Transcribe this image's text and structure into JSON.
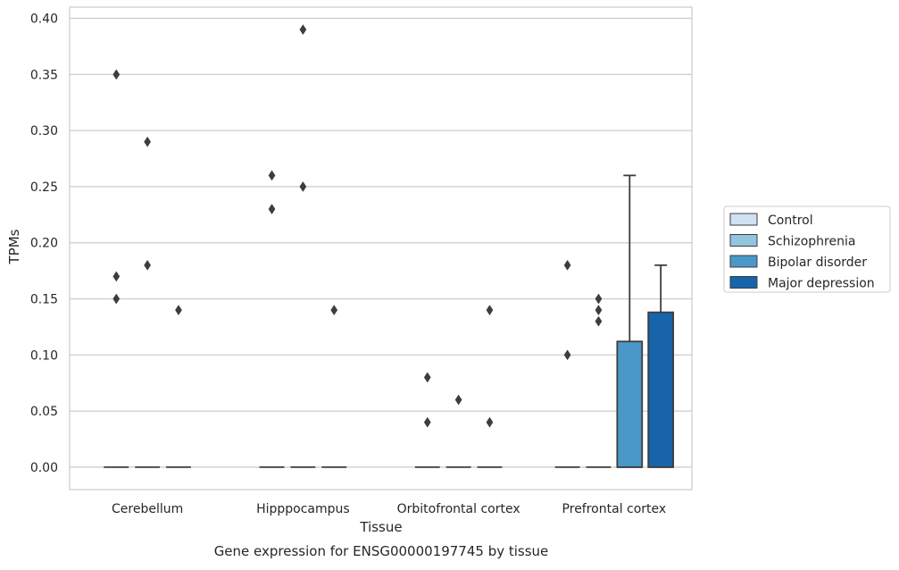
{
  "chart_data": {
    "type": "box",
    "ylabel": "TPMs",
    "xlabel": "Tissue",
    "caption": "Gene expression for ENSG00000197745 by tissue",
    "ylim": [
      -0.02,
      0.41
    ],
    "yticks": [
      0.0,
      0.05,
      0.1,
      0.15,
      0.2,
      0.25,
      0.3,
      0.35,
      0.4
    ],
    "ytick_labels": [
      "0.00",
      "0.05",
      "0.10",
      "0.15",
      "0.20",
      "0.25",
      "0.30",
      "0.35",
      "0.40"
    ],
    "grid": "horizontal",
    "legend_position": "right",
    "categories": [
      "Cerebellum",
      "Hipppocampus",
      "Orbitofrontal cortex",
      "Prefrontal cortex"
    ],
    "series": [
      {
        "name": "Control",
        "color": "#d0e1f2",
        "boxes": [
          {
            "q1": 0,
            "median": 0,
            "q3": 0,
            "whisker_low": 0,
            "whisker_high": 0,
            "outliers": [
              0.35,
              0.17,
              0.15
            ]
          },
          {
            "q1": 0,
            "median": 0,
            "q3": 0,
            "whisker_low": 0,
            "whisker_high": 0,
            "outliers": [
              0.26,
              0.23
            ]
          },
          {
            "q1": 0,
            "median": 0,
            "q3": 0,
            "whisker_low": 0,
            "whisker_high": 0,
            "outliers": [
              0.08,
              0.04
            ]
          },
          {
            "q1": 0,
            "median": 0,
            "q3": 0,
            "whisker_low": 0,
            "whisker_high": 0,
            "outliers": [
              0.18,
              0.1
            ]
          }
        ]
      },
      {
        "name": "Schizophrenia",
        "color": "#94c4df",
        "boxes": [
          {
            "q1": 0,
            "median": 0,
            "q3": 0,
            "whisker_low": 0,
            "whisker_high": 0,
            "outliers": [
              0.29,
              0.18
            ]
          },
          {
            "q1": 0,
            "median": 0,
            "q3": 0,
            "whisker_low": 0,
            "whisker_high": 0,
            "outliers": [
              0.39,
              0.25
            ]
          },
          {
            "q1": 0,
            "median": 0,
            "q3": 0,
            "whisker_low": 0,
            "whisker_high": 0,
            "outliers": [
              0.06
            ]
          },
          {
            "q1": 0,
            "median": 0,
            "q3": 0,
            "whisker_low": 0,
            "whisker_high": 0,
            "outliers": [
              0.15,
              0.14,
              0.13
            ]
          }
        ]
      },
      {
        "name": "Bipolar disorder",
        "color": "#4a98c9",
        "boxes": [
          {
            "q1": 0,
            "median": 0,
            "q3": 0,
            "whisker_low": 0,
            "whisker_high": 0,
            "outliers": [
              0.14
            ]
          },
          {
            "q1": 0,
            "median": 0,
            "q3": 0,
            "whisker_low": 0,
            "whisker_high": 0,
            "outliers": [
              0.14
            ]
          },
          {
            "q1": 0,
            "median": 0,
            "q3": 0,
            "whisker_low": 0,
            "whisker_high": 0,
            "outliers": [
              0.14,
              0.04
            ]
          },
          {
            "q1": 0,
            "median": 0,
            "q3": 0.112,
            "whisker_low": 0,
            "whisker_high": 0.26,
            "outliers": []
          }
        ]
      },
      {
        "name": "Major depression",
        "color": "#1764ab",
        "boxes": [
          null,
          null,
          null,
          {
            "q1": 0,
            "median": 0,
            "q3": 0.138,
            "whisker_low": 0,
            "whisker_high": 0.18,
            "outliers": []
          }
        ]
      }
    ],
    "present_hues": [
      [
        0,
        1,
        2
      ],
      [
        0,
        1,
        2
      ],
      [
        0,
        1,
        2
      ],
      [
        0,
        1,
        2,
        3
      ]
    ]
  }
}
